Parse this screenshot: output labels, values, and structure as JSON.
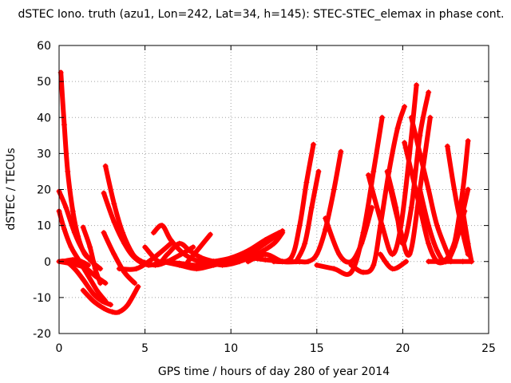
{
  "chart_data": {
    "type": "scatter",
    "title": "dSTEC Iono. truth (azu1, Lon=242, Lat=34, h=145): STEC-STEC_elemax in phase cont.",
    "xlabel": "GPS time / hours of day 280 of year 2014",
    "ylabel": "dSTEC  / TECUs",
    "xlim": [
      0,
      25
    ],
    "ylim": [
      -20,
      60
    ],
    "x_ticks": [
      0,
      5,
      10,
      15,
      20,
      25
    ],
    "y_ticks": [
      -20,
      -10,
      0,
      10,
      20,
      30,
      40,
      50,
      60
    ],
    "grid": true,
    "marker": "plus",
    "series_color": "#ff0000",
    "arcs": [
      {
        "x": [
          0.1,
          0.3,
          0.5,
          0.8,
          1.1,
          1.5,
          2.0
        ],
        "y": [
          52.5,
          38,
          25,
          14,
          7,
          2,
          0
        ]
      },
      {
        "x": [
          0.0,
          0.4,
          0.9,
          1.4,
          1.9,
          2.4
        ],
        "y": [
          19.5,
          15,
          8,
          3,
          0,
          -2
        ]
      },
      {
        "x": [
          0.0,
          0.3,
          0.7,
          1.2,
          1.7,
          2.2,
          2.7
        ],
        "y": [
          14,
          9,
          4,
          0,
          -4,
          -8,
          -11
        ]
      },
      {
        "x": [
          0.0,
          0.4,
          0.9,
          1.4,
          2.0,
          2.5,
          3.0
        ],
        "y": [
          0,
          0,
          -2,
          -5,
          -9,
          -11,
          -12
        ]
      },
      {
        "x": [
          0.0,
          0.6,
          1.1,
          1.6,
          2.1,
          2.7
        ],
        "y": [
          0,
          -0.5,
          -1,
          -2,
          -4,
          -6
        ]
      },
      {
        "x": [
          1.4,
          2.0,
          2.6,
          3.1,
          3.5,
          4.0,
          4.6
        ],
        "y": [
          -8,
          -11,
          -13,
          -14,
          -14,
          -12,
          -7
        ]
      },
      {
        "x": [
          1.4,
          1.8,
          2.1,
          2.4
        ],
        "y": [
          9.5,
          4,
          -2,
          -6
        ]
      },
      {
        "x": [
          2.7,
          3.2,
          3.7,
          4.3,
          4.8
        ],
        "y": [
          26.5,
          16,
          8,
          2,
          0
        ]
      },
      {
        "x": [
          2.6,
          3.2,
          3.8,
          4.4,
          5.2,
          6.0
        ],
        "y": [
          19,
          11,
          5,
          1,
          -1,
          0
        ]
      },
      {
        "x": [
          2.6,
          3.2,
          3.8,
          4.4
        ],
        "y": [
          8,
          2,
          -3,
          -6
        ]
      },
      {
        "x": [
          0.2,
          0.8,
          1.3,
          1.7
        ],
        "y": [
          0,
          0.5,
          0,
          -1
        ]
      },
      {
        "x": [
          4.8,
          5.6,
          6.3,
          7.1,
          7.8
        ],
        "y": [
          0,
          -1,
          0,
          2,
          4
        ]
      },
      {
        "x": [
          3.5,
          4.5,
          5.5,
          6.5
        ],
        "y": [
          -2,
          -2,
          1,
          5
        ]
      },
      {
        "x": [
          5.0,
          5.8,
          6.3,
          7.0,
          7.6,
          8.3,
          9.0
        ],
        "y": [
          4,
          0,
          2,
          5,
          3,
          1,
          0
        ]
      },
      {
        "x": [
          5.5,
          6.0,
          6.5,
          7.3,
          8.2,
          9.0
        ],
        "y": [
          8,
          10,
          6,
          2,
          0,
          0
        ]
      },
      {
        "x": [
          6.0,
          7.0,
          8.0,
          9.0,
          10.0,
          11.0
        ],
        "y": [
          0,
          -1,
          -2,
          -1,
          0,
          1
        ]
      },
      {
        "x": [
          7.5,
          8.2,
          8.8
        ],
        "y": [
          0,
          4,
          7.5
        ]
      },
      {
        "x": [
          8.6,
          9.5,
          10.5,
          11.5,
          12.5,
          13.0
        ],
        "y": [
          0,
          -1,
          0,
          2,
          5,
          8
        ]
      },
      {
        "x": [
          9.0,
          10.0,
          11.0,
          12.0,
          12.8
        ],
        "y": [
          0,
          1,
          3,
          6,
          8
        ]
      },
      {
        "x": [
          10.0,
          11.0,
          12.0,
          13.0
        ],
        "y": [
          0,
          2,
          5,
          8.5
        ]
      },
      {
        "x": [
          11.0,
          12.0,
          13.0,
          14.0
        ],
        "y": [
          0,
          2,
          0,
          0
        ]
      },
      {
        "x": [
          6.0,
          7.0,
          8.0,
          9.0,
          10.0,
          11.0,
          12.0,
          13.0,
          14.0
        ],
        "y": [
          0,
          -0.5,
          -1,
          0,
          0.5,
          1,
          0.5,
          0,
          0
        ]
      },
      {
        "x": [
          12.5,
          13.5,
          14.0,
          14.4,
          14.8
        ],
        "y": [
          0,
          1,
          10,
          22,
          32.5
        ]
      },
      {
        "x": [
          13.8,
          14.3,
          14.7,
          15.1
        ],
        "y": [
          0,
          5,
          15,
          25
        ]
      },
      {
        "x": [
          14.0,
          14.5,
          15.0,
          15.5,
          16.0,
          16.4
        ],
        "y": [
          0,
          0,
          2,
          9,
          20,
          30.5
        ]
      },
      {
        "x": [
          15.0,
          16.0,
          17.0,
          17.7,
          18.3,
          18.8
        ],
        "y": [
          -1,
          -2,
          -3,
          8,
          25,
          40
        ]
      },
      {
        "x": [
          15.5,
          16.3,
          17.0,
          17.6,
          18.2
        ],
        "y": [
          12,
          2,
          0,
          5,
          15
        ]
      },
      {
        "x": [
          17.0,
          17.7,
          18.3,
          18.7,
          19.2,
          19.7,
          20.1
        ],
        "y": [
          -1,
          -3,
          -1,
          10,
          25,
          37,
          43
        ]
      },
      {
        "x": [
          18.0,
          18.8,
          19.4,
          19.9,
          20.4,
          20.8
        ],
        "y": [
          24,
          10,
          2,
          10,
          30,
          49
        ]
      },
      {
        "x": [
          18.7,
          19.4,
          20.2
        ],
        "y": [
          2,
          -2,
          0
        ]
      },
      {
        "x": [
          19.1,
          19.6,
          20.0,
          20.5,
          21.0,
          21.5
        ],
        "y": [
          25,
          15,
          5,
          15,
          35,
          47
        ]
      },
      {
        "x": [
          19.2,
          19.8,
          20.4,
          21.0,
          21.6
        ],
        "y": [
          22,
          10,
          2,
          20,
          40
        ]
      },
      {
        "x": [
          20.1,
          20.5,
          21.0,
          21.5,
          22.0,
          22.5
        ],
        "y": [
          33,
          25,
          15,
          5,
          0,
          0
        ]
      },
      {
        "x": [
          20.5,
          21.0,
          21.5,
          22.0,
          22.8
        ],
        "y": [
          40,
          30,
          20,
          10,
          0
        ]
      },
      {
        "x": [
          21.0,
          21.5,
          22.0,
          22.5,
          23.0,
          23.6
        ],
        "y": [
          20,
          10,
          3,
          0,
          4,
          14
        ]
      },
      {
        "x": [
          22.6,
          23.0,
          23.4,
          23.8
        ],
        "y": [
          32,
          20,
          10,
          2
        ]
      },
      {
        "x": [
          22.0,
          22.6,
          23.2,
          23.8
        ],
        "y": [
          0,
          1,
          8,
          20
        ]
      },
      {
        "x": [
          22.5,
          23.0,
          23.5,
          23.8
        ],
        "y": [
          0,
          5,
          20,
          33.5
        ]
      },
      {
        "x": [
          23.5,
          23.8,
          24.0
        ],
        "y": [
          14,
          5,
          0
        ]
      },
      {
        "x": [
          21.5,
          22.5,
          23.5,
          24.0
        ],
        "y": [
          0,
          0,
          0,
          0
        ]
      }
    ]
  }
}
